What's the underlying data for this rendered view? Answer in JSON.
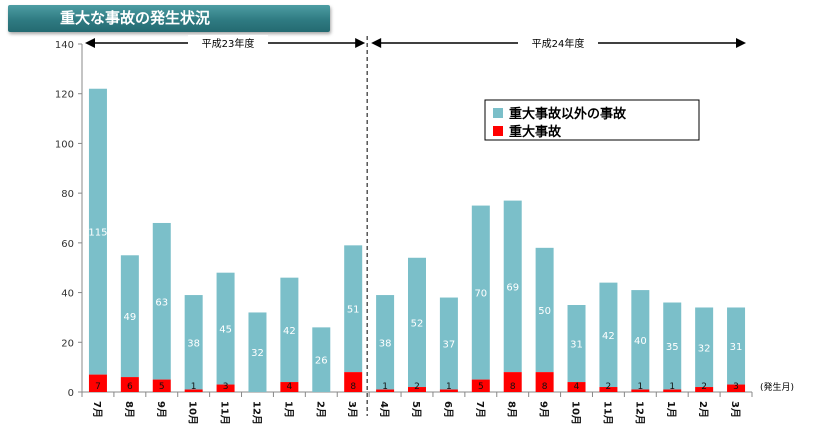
{
  "header": {
    "title": "重大な事故の発生状況"
  },
  "chart_data": {
    "type": "bar",
    "stacked": true,
    "categories": [
      "7月",
      "8月",
      "9月",
      "10月",
      "11月",
      "12月",
      "1月",
      "2月",
      "3月",
      "4月",
      "5月",
      "6月",
      "7月",
      "8月",
      "9月",
      "10月",
      "11月",
      "12月",
      "1月",
      "2月",
      "3月"
    ],
    "series": [
      {
        "name": "重大事故",
        "color": "#ff0000",
        "values": [
          7,
          6,
          5,
          1,
          3,
          0,
          4,
          0,
          8,
          1,
          2,
          1,
          5,
          8,
          8,
          4,
          2,
          1,
          1,
          2,
          3
        ],
        "labels": [
          "7",
          "6",
          "5",
          "1",
          "3",
          "",
          "4",
          "",
          "8",
          "1",
          "2",
          "1",
          "5",
          "8",
          "8",
          "4",
          "2",
          "1",
          "1",
          "2",
          "3"
        ]
      },
      {
        "name": "重大事故以外の事故",
        "color": "#7bbfc9",
        "values": [
          115,
          49,
          63,
          38,
          45,
          32,
          42,
          26,
          51,
          38,
          52,
          37,
          70,
          69,
          50,
          31,
          42,
          40,
          35,
          32,
          31
        ],
        "labels": [
          "115",
          "49",
          "63",
          "38",
          "45",
          "32",
          "42",
          "26",
          "51",
          "38",
          "52",
          "37",
          "70",
          "69",
          "50",
          "31",
          "42",
          "40",
          "35",
          "32",
          "31"
        ]
      }
    ],
    "ylim": [
      0,
      140
    ],
    "yticks": [
      0,
      20,
      40,
      60,
      80,
      100,
      120,
      140
    ],
    "xlabel": "(発生月)",
    "legend_position": "upper-right",
    "periods": [
      {
        "label": "平成23年度",
        "from": 0,
        "to": 8
      },
      {
        "label": "平成24年度",
        "from": 9,
        "to": 20
      }
    ],
    "grid": false
  }
}
